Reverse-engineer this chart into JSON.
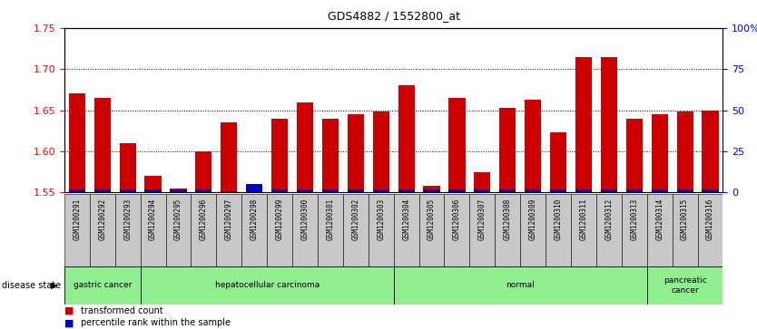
{
  "title": "GDS4882 / 1552800_at",
  "samples": [
    "GSM1200291",
    "GSM1200292",
    "GSM1200293",
    "GSM1200294",
    "GSM1200295",
    "GSM1200296",
    "GSM1200297",
    "GSM1200298",
    "GSM1200299",
    "GSM1200300",
    "GSM1200301",
    "GSM1200302",
    "GSM1200303",
    "GSM1200304",
    "GSM1200305",
    "GSM1200306",
    "GSM1200307",
    "GSM1200308",
    "GSM1200309",
    "GSM1200310",
    "GSM1200311",
    "GSM1200312",
    "GSM1200313",
    "GSM1200314",
    "GSM1200315",
    "GSM1200316"
  ],
  "transformed_count": [
    1.67,
    1.665,
    1.61,
    1.57,
    1.555,
    1.6,
    1.635,
    1.555,
    1.64,
    1.66,
    1.64,
    1.645,
    1.648,
    1.68,
    1.558,
    1.665,
    1.575,
    1.653,
    1.663,
    1.623,
    1.715,
    1.715,
    1.64,
    1.645,
    1.648,
    1.65
  ],
  "percentile_rank": [
    2,
    2,
    2,
    2,
    2,
    2,
    1,
    5,
    2,
    2,
    2,
    2,
    2,
    2,
    2,
    2,
    2,
    2,
    2,
    2,
    2,
    2,
    2,
    2,
    2,
    2
  ],
  "disease_groups": [
    {
      "label": "gastric cancer",
      "start": 0,
      "end": 3
    },
    {
      "label": "hepatocellular carcinoma",
      "start": 3,
      "end": 13
    },
    {
      "label": "normal",
      "start": 13,
      "end": 23
    },
    {
      "label": "pancreatic\ncancer",
      "start": 23,
      "end": 26
    }
  ],
  "ylim_left": [
    1.55,
    1.75
  ],
  "ylim_right": [
    0,
    100
  ],
  "yticks_left": [
    1.55,
    1.6,
    1.65,
    1.7,
    1.75
  ],
  "yticks_right": [
    0,
    25,
    50,
    75,
    100
  ],
  "ytick_labels_right": [
    "0",
    "25",
    "50",
    "75",
    "100%"
  ],
  "bar_color_red": "#CC0000",
  "bar_color_blue": "#0000CC",
  "plot_bg": "#ffffff",
  "tick_bg": "#C8C8C8",
  "group_color": "#90EE90",
  "bar_width": 0.65,
  "baseline": 1.55
}
